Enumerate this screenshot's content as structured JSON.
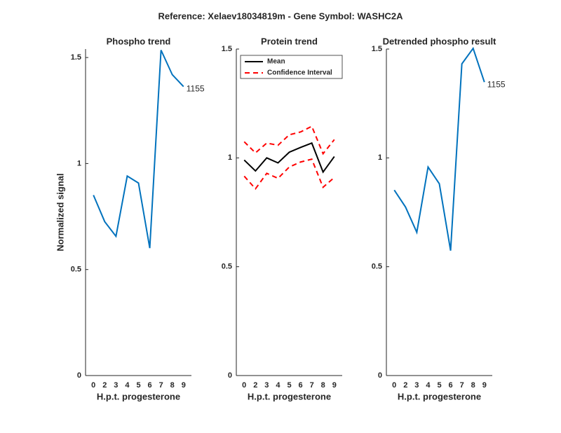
{
  "title": "Reference:  Xelaev18034819m - Gene Symbol:  WASHC2A",
  "chart_data": [
    {
      "type": "line",
      "title": "Phospho trend",
      "xlabel": "H.p.t. progesterone",
      "ylabel": "Normalized signal",
      "categories": [
        "0",
        "2",
        "3",
        "4",
        "5",
        "6",
        "7",
        "8",
        "9"
      ],
      "values": [
        0.851,
        0.726,
        0.657,
        0.941,
        0.908,
        0.601,
        1.535,
        1.419,
        1.363
      ],
      "color": "#0072bd",
      "annotation": "1155",
      "ylim": [
        0,
        1.54
      ],
      "yticks": [
        0,
        0.5,
        1,
        1.5
      ]
    },
    {
      "type": "line",
      "title": "Protein trend",
      "xlabel": "H.p.t. progesterone",
      "categories": [
        "0",
        "2",
        "3",
        "4",
        "5",
        "6",
        "7",
        "8",
        "9"
      ],
      "series": [
        {
          "name": "Mean",
          "color": "#000000",
          "values": [
            0.99,
            0.94,
            1.0,
            0.977,
            1.026,
            1.048,
            1.068,
            0.935,
            1.006
          ]
        },
        {
          "name": "Confidence Interval",
          "color": "#ff0000",
          "dashed": true,
          "upper": [
            1.074,
            1.023,
            1.068,
            1.058,
            1.106,
            1.119,
            1.145,
            1.019,
            1.084
          ],
          "lower": [
            0.916,
            0.858,
            0.929,
            0.906,
            0.958,
            0.981,
            0.994,
            0.865,
            0.91
          ]
        }
      ],
      "legend": "northwest",
      "ylim": [
        0,
        1.5
      ],
      "yticks": [
        0,
        0.5,
        1,
        1.5
      ]
    },
    {
      "type": "line",
      "title": "Detrended phospho result",
      "xlabel": "H.p.t. progesterone",
      "categories": [
        "0",
        "2",
        "3",
        "4",
        "5",
        "6",
        "7",
        "8",
        "9"
      ],
      "values": [
        0.852,
        0.774,
        0.658,
        0.958,
        0.881,
        0.574,
        1.432,
        1.503,
        1.348
      ],
      "color": "#0072bd",
      "annotation": "1155",
      "ylim": [
        0,
        1.5
      ],
      "yticks": [
        0,
        0.5,
        1,
        1.5
      ]
    }
  ]
}
